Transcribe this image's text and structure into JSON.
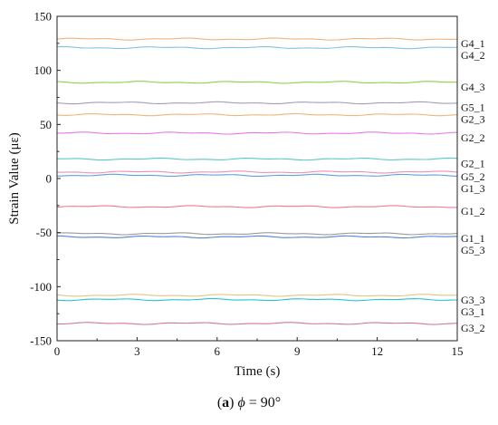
{
  "chart_data": {
    "type": "line",
    "xlabel": "Time (s)",
    "ylabel": "Strain Value (με)",
    "xlim": [
      0,
      15
    ],
    "ylim": [
      -150,
      150
    ],
    "xticks": [
      "0",
      "3",
      "6",
      "9",
      "12",
      "15"
    ],
    "yticks": [
      "150",
      "100",
      "50",
      "0",
      "-50",
      "-100",
      "-150"
    ],
    "grid": false,
    "series": [
      {
        "name": "G4_1",
        "value": 129,
        "color": "#f2b27a"
      },
      {
        "name": "G4_2",
        "value": 121,
        "color": "#7ec4e8"
      },
      {
        "name": "G4_3",
        "value": 89,
        "color": "#8cd04e"
      },
      {
        "name": "G5_1",
        "value": 70,
        "color": "#a59bb8"
      },
      {
        "name": "G2_3",
        "value": 59,
        "color": "#f0b47a"
      },
      {
        "name": "G2_2",
        "value": 42,
        "color": "#e67ae8"
      },
      {
        "name": "G2_1",
        "value": 18,
        "color": "#5cc8c4"
      },
      {
        "name": "G5_2",
        "value": 6,
        "color": "#ef8fb0"
      },
      {
        "name": "G1_3",
        "value": 3,
        "color": "#5aa0e0"
      },
      {
        "name": "G1_2",
        "value": -26,
        "color": "#f07a8a"
      },
      {
        "name": "G1_1",
        "value": -51,
        "color": "#9a9a9a"
      },
      {
        "name": "G5_3",
        "value": -54,
        "color": "#4f86d0"
      },
      {
        "name": "G3_3",
        "value": -108,
        "color": "#e8c27a"
      },
      {
        "name": "G3_1",
        "value": -112,
        "color": "#1fc4d8"
      },
      {
        "name": "G3_2",
        "value": -134,
        "color": "#d07a8a"
      }
    ]
  },
  "caption": {
    "label": "a",
    "symbol": "ϕ",
    "text": " = 90°"
  }
}
